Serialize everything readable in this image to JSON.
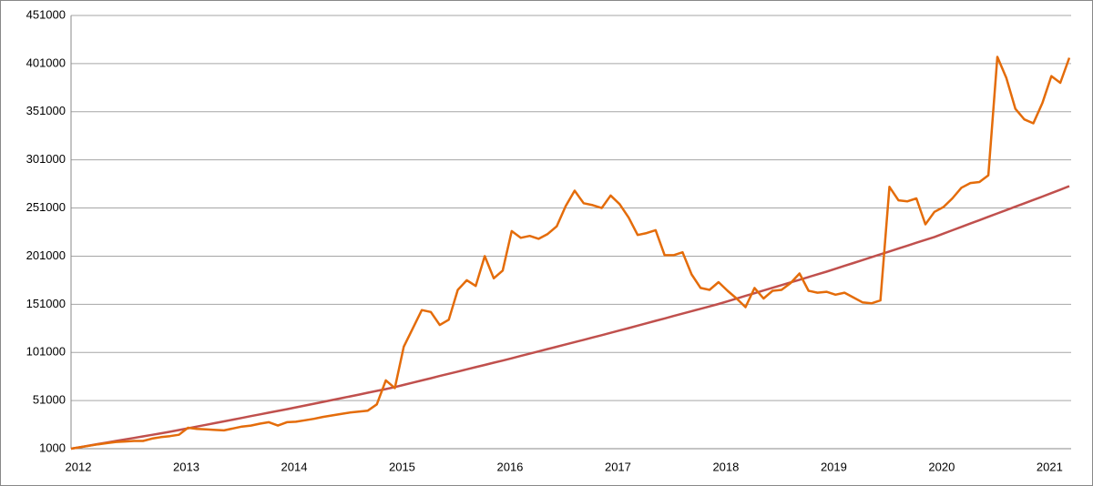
{
  "chart_data": {
    "type": "line",
    "categories": [
      "2012",
      null,
      null,
      null,
      null,
      null,
      null,
      null,
      null,
      null,
      null,
      null,
      "2013",
      null,
      null,
      null,
      null,
      null,
      null,
      null,
      null,
      null,
      null,
      null,
      "2014",
      null,
      null,
      null,
      null,
      null,
      null,
      null,
      null,
      null,
      null,
      null,
      "2015",
      null,
      null,
      null,
      null,
      null,
      null,
      null,
      null,
      null,
      null,
      null,
      "2016",
      null,
      null,
      null,
      null,
      null,
      null,
      null,
      null,
      null,
      null,
      null,
      "2017",
      null,
      null,
      null,
      null,
      null,
      null,
      null,
      null,
      null,
      null,
      null,
      "2018",
      null,
      null,
      null,
      null,
      null,
      null,
      null,
      null,
      null,
      null,
      null,
      "2019",
      null,
      null,
      null,
      null,
      null,
      null,
      null,
      null,
      null,
      null,
      null,
      "2020",
      null,
      null,
      null,
      null,
      null,
      null,
      null,
      null,
      null,
      null,
      null,
      "2021",
      null,
      null,
      null
    ],
    "series": [
      {
        "color": "#e46c0a",
        "values": [
          1000,
          2500,
          4000,
          5500,
          6800,
          8000,
          8500,
          9000,
          9000,
          11500,
          13000,
          14000,
          15500,
          22700,
          21500,
          21000,
          20500,
          20000,
          22000,
          24000,
          25000,
          27000,
          28500,
          25000,
          28500,
          29000,
          30500,
          32000,
          34000,
          35500,
          37000,
          38500,
          39500,
          40500,
          47000,
          72000,
          64000,
          107000,
          126000,
          145000,
          143000,
          129500,
          135000,
          166000,
          176000,
          170000,
          201000,
          178000,
          186000,
          227000,
          220000,
          222000,
          219000,
          224000,
          232000,
          253000,
          269000,
          256000,
          254000,
          251000,
          264000,
          255000,
          241000,
          223000,
          225000,
          228000,
          202000,
          202000,
          205000,
          182000,
          168000,
          166000,
          174000,
          165000,
          157000,
          148000,
          168000,
          157000,
          165000,
          166000,
          173000,
          183000,
          165000,
          163000,
          164000,
          161000,
          163000,
          158000,
          153000,
          152000,
          155000,
          273000,
          259000,
          258000,
          261000,
          234000,
          247000,
          252000,
          261000,
          272000,
          277000,
          278000,
          285000,
          408000,
          386000,
          354000,
          343000,
          339000,
          360000,
          388000,
          381000,
          407000
        ]
      },
      {
        "color": "#c0504d",
        "values": [
          1000,
          2600,
          4200,
          5800,
          7400,
          9000,
          10600,
          12200,
          13800,
          15400,
          17000,
          18600,
          20400,
          22200,
          24000,
          25800,
          27600,
          29400,
          31200,
          33000,
          34800,
          36600,
          38400,
          40200,
          42000,
          43900,
          45800,
          47700,
          49600,
          51500,
          53400,
          55300,
          57200,
          59100,
          61000,
          62900,
          65000,
          67300,
          69600,
          71900,
          74200,
          76500,
          78800,
          81100,
          83400,
          85700,
          88000,
          90300,
          92500,
          94900,
          97300,
          99700,
          102100,
          104500,
          106900,
          109300,
          111700,
          114100,
          116500,
          118900,
          121300,
          123800,
          126300,
          128800,
          131300,
          133800,
          136300,
          138800,
          141300,
          143800,
          146300,
          148800,
          151300,
          154100,
          156900,
          159700,
          162500,
          165300,
          168100,
          170900,
          173700,
          176500,
          179300,
          182100,
          184900,
          187900,
          190900,
          193900,
          196900,
          199900,
          202900,
          205900,
          208900,
          211900,
          214900,
          217900,
          220900,
          224400,
          227900,
          231400,
          234900,
          238400,
          241900,
          245400,
          248900,
          252400,
          255900,
          259400,
          262900,
          266500,
          270100,
          273700
        ]
      }
    ],
    "ylim": [
      1000,
      451000
    ],
    "yticks": [
      1000,
      51000,
      101000,
      151000,
      201000,
      251000,
      301000,
      351000,
      401000,
      451000
    ],
    "grid": true
  }
}
